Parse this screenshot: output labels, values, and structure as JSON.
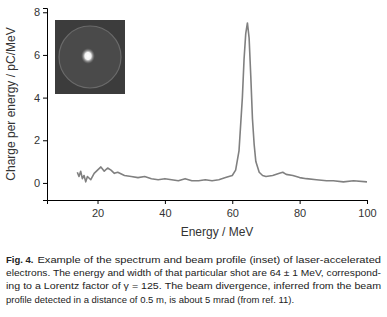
{
  "chart_data": {
    "type": "line",
    "x_label": "Energy / MeV",
    "y_label": "Charge per energy / pC/MeV",
    "caption_label": "Fig. 4.",
    "caption": [
      "Example of the spectrum and beam profile (inset) of laser-accelerated",
      "electrons. The energy and width of that particular shot are 64 ± 1 MeV, correspond-",
      "ing to a Lorentz factor of γ = 125. The beam divergence, inferred from the beam",
      "profile detected in a distance of 0.5 m, is about 5 mrad (from ref. 11)."
    ],
    "x": [
      14,
      14.5,
      15,
      15.5,
      16,
      16.5,
      17,
      18,
      19,
      20,
      21,
      22,
      23,
      24,
      25,
      26,
      28,
      30,
      32,
      34,
      36,
      38,
      40,
      42,
      44,
      46,
      48,
      50,
      52,
      54,
      56,
      58,
      60,
      61,
      62,
      63,
      63.5,
      64,
      64.5,
      65,
      65.5,
      66,
      66.5,
      67,
      68,
      69,
      70,
      72,
      74,
      75,
      76,
      78,
      80,
      82,
      85,
      88,
      90,
      93,
      96,
      100
    ],
    "values": [
      0.5,
      0.3,
      0.55,
      0.2,
      0.35,
      0.05,
      0.3,
      0.15,
      0.45,
      0.6,
      0.75,
      0.55,
      0.7,
      0.6,
      0.45,
      0.5,
      0.35,
      0.3,
      0.25,
      0.3,
      0.2,
      0.15,
      0.2,
      0.15,
      0.1,
      0.2,
      0.1,
      0.1,
      0.15,
      0.1,
      0.15,
      0.25,
      0.35,
      0.6,
      1.5,
      4.0,
      5.8,
      7.0,
      7.5,
      6.8,
      5.0,
      3.0,
      1.8,
      1.0,
      0.5,
      0.35,
      0.3,
      0.35,
      0.45,
      0.5,
      0.4,
      0.35,
      0.25,
      0.2,
      0.15,
      0.1,
      0.1,
      0.05,
      0.1,
      0.05
    ],
    "color": "#808080",
    "xlim": [
      5,
      100
    ],
    "ylim": [
      -0.8,
      8.2
    ],
    "xticks": [
      20,
      40,
      60,
      80,
      100
    ],
    "yticks": [
      0,
      2,
      4,
      6,
      8
    ],
    "grid": false
  }
}
